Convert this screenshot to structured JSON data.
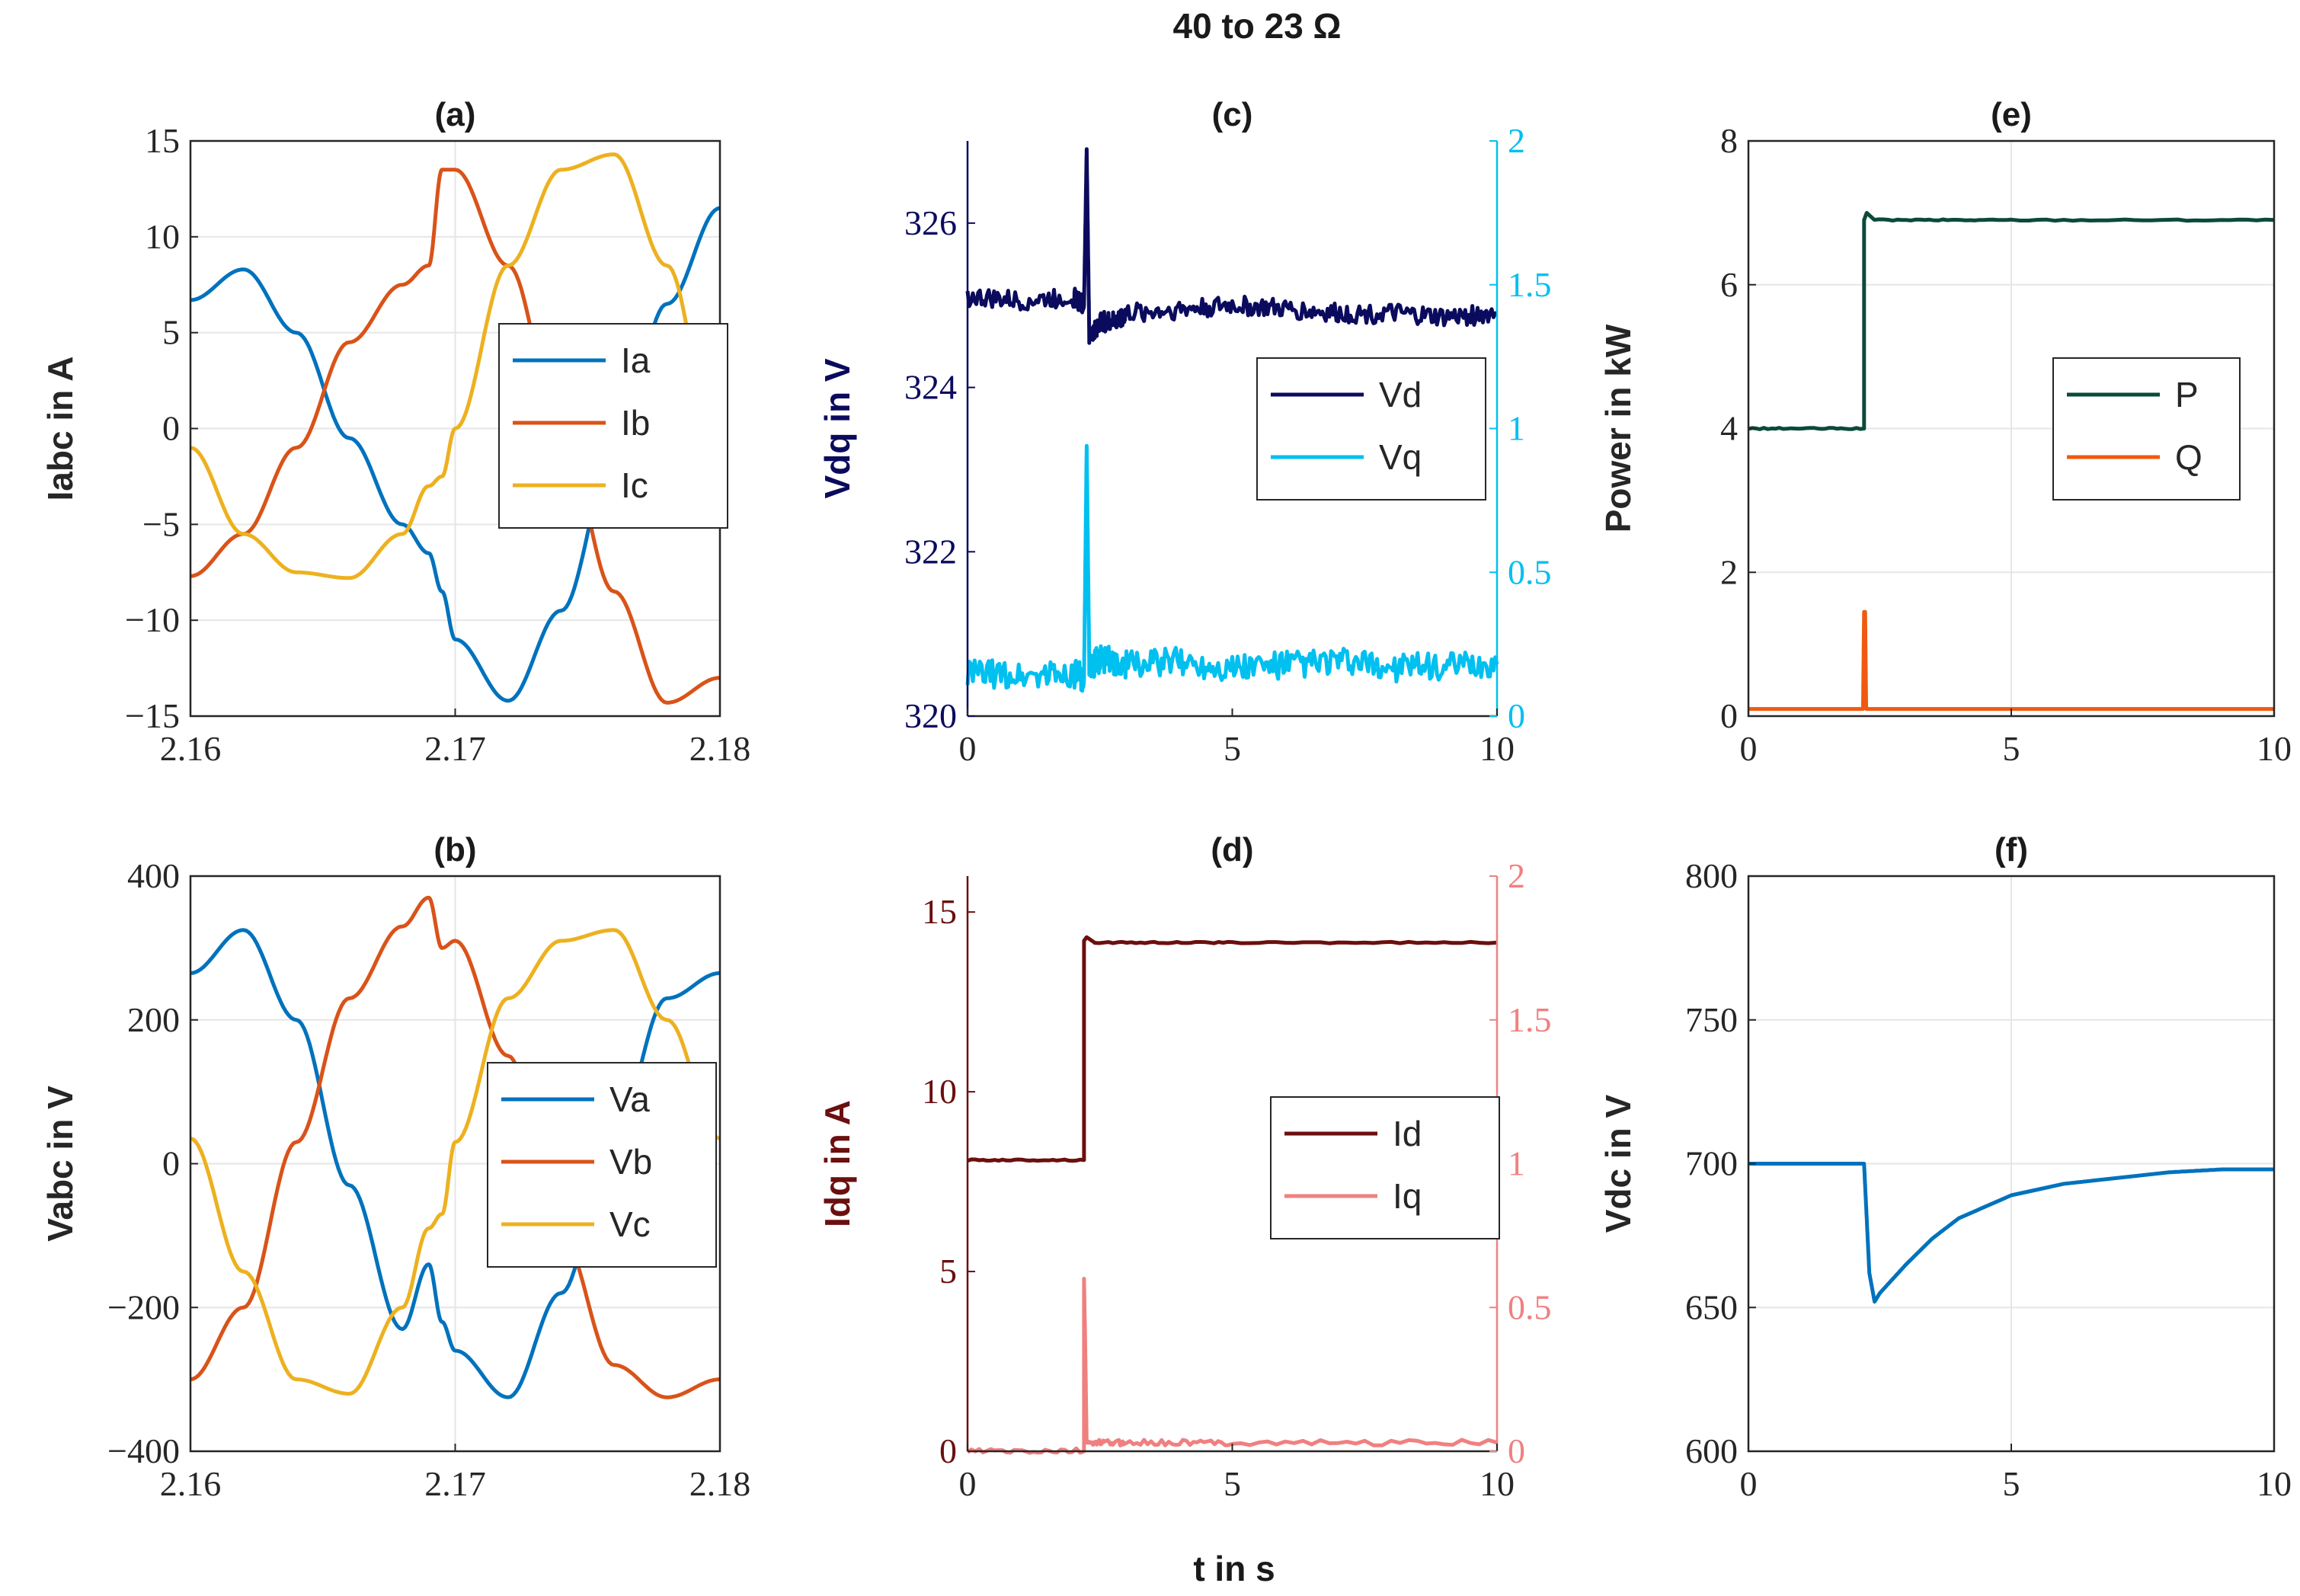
{
  "figure": {
    "suptitle": "40 to 23 Ω",
    "xlabel": "t in s"
  },
  "colors": {
    "ia": "#0072BD",
    "ib": "#D95319",
    "ic": "#EDB120",
    "vd": "#0B0B5E",
    "vq": "#00C0F0",
    "id": "#6B0F0F",
    "iq": "#F08080",
    "p": "#0B4A3A",
    "q": "#F05A10",
    "vdc": "#0072BD",
    "grid": "#e6e6e6",
    "axis": "#262626"
  },
  "chart_data": [
    {
      "id": "a",
      "type": "line",
      "title": "(a)",
      "ylabel": "Iabc in A",
      "xlabel": "",
      "xlim": [
        2.16,
        2.18
      ],
      "ylim": [
        -15,
        15
      ],
      "xticks": [
        2.16,
        2.17,
        2.18
      ],
      "xtick_labels": [
        "2.16",
        "2.17",
        "2.18"
      ],
      "yticks": [
        -15,
        -10,
        -5,
        0,
        5,
        10,
        15
      ],
      "ytick_labels": [
        "−15",
        "−10",
        "−5",
        "0",
        "5",
        "10",
        "15"
      ],
      "grid": true,
      "legend_position": "center-right",
      "series": [
        {
          "name": "Ia",
          "x": [
            2.16,
            2.162,
            2.164,
            2.166,
            2.168,
            2.169,
            2.1695,
            2.17,
            2.172,
            2.174,
            2.176,
            2.178,
            2.18
          ],
          "y": [
            6.7,
            8.3,
            5.0,
            -0.5,
            -5.0,
            -6.5,
            -8.5,
            -11.0,
            -14.2,
            -9.5,
            -1.5,
            6.5,
            11.5
          ]
        },
        {
          "name": "Ib",
          "x": [
            2.16,
            2.162,
            2.164,
            2.166,
            2.168,
            2.169,
            2.1695,
            2.17,
            2.172,
            2.174,
            2.176,
            2.178,
            2.18
          ],
          "y": [
            -7.7,
            -5.5,
            -1.0,
            4.5,
            7.5,
            8.5,
            13.5,
            13.5,
            8.5,
            0.0,
            -8.5,
            -14.3,
            -13.0
          ]
        },
        {
          "name": "Ic",
          "x": [
            2.16,
            2.162,
            2.164,
            2.166,
            2.168,
            2.169,
            2.1695,
            2.17,
            2.172,
            2.174,
            2.176,
            2.178,
            2.18
          ],
          "y": [
            -1.0,
            -5.5,
            -7.5,
            -7.8,
            -5.5,
            -3.0,
            -2.5,
            0.0,
            8.5,
            13.5,
            14.3,
            8.5,
            -2.0
          ]
        }
      ]
    },
    {
      "id": "b",
      "type": "line",
      "title": "(b)",
      "ylabel": "Vabc in V",
      "xlabel": "",
      "xlim": [
        2.16,
        2.18
      ],
      "ylim": [
        -400,
        400
      ],
      "xticks": [
        2.16,
        2.17,
        2.18
      ],
      "xtick_labels": [
        "2.16",
        "2.17",
        "2.18"
      ],
      "yticks": [
        -400,
        -200,
        0,
        200,
        400
      ],
      "ytick_labels": [
        "−400",
        "−200",
        "0",
        "200",
        "400"
      ],
      "grid": true,
      "legend_position": "center-right",
      "series": [
        {
          "name": "Va",
          "x": [
            2.16,
            2.162,
            2.164,
            2.166,
            2.168,
            2.169,
            2.1695,
            2.17,
            2.172,
            2.174,
            2.176,
            2.178,
            2.18
          ],
          "y": [
            265,
            325,
            200,
            -30,
            -230,
            -140,
            -220,
            -260,
            -325,
            -180,
            40,
            230,
            265
          ]
        },
        {
          "name": "Vb",
          "x": [
            2.16,
            2.162,
            2.164,
            2.166,
            2.168,
            2.169,
            2.1695,
            2.17,
            2.172,
            2.174,
            2.176,
            2.178,
            2.18
          ],
          "y": [
            -300,
            -200,
            30,
            230,
            330,
            370,
            300,
            310,
            150,
            -100,
            -280,
            -325,
            -300
          ]
        },
        {
          "name": "Vc",
          "x": [
            2.16,
            2.162,
            2.164,
            2.166,
            2.168,
            2.169,
            2.1695,
            2.17,
            2.172,
            2.174,
            2.176,
            2.178,
            2.18
          ],
          "y": [
            35,
            -150,
            -300,
            -320,
            -200,
            -90,
            -70,
            30,
            230,
            310,
            325,
            200,
            35
          ]
        }
      ]
    },
    {
      "id": "c",
      "type": "line",
      "title": "(c)",
      "ylabel": "Vdq in V",
      "xlabel": "",
      "xlim": [
        0,
        10
      ],
      "ylim": [
        320,
        327
      ],
      "y2lim": [
        0,
        2
      ],
      "xticks": [
        0,
        5,
        10
      ],
      "xtick_labels": [
        "0",
        "5",
        "10"
      ],
      "yticks": [
        320,
        322,
        324,
        326
      ],
      "ytick_labels": [
        "320",
        "322",
        "324",
        "326"
      ],
      "y2ticks": [
        0,
        0.5,
        1,
        1.5,
        2
      ],
      "y2tick_labels": [
        "0",
        "0.5",
        "1",
        "1.5",
        "2"
      ],
      "grid": false,
      "legend_position": "center-right",
      "series": [
        {
          "name": "Vd",
          "axis": "left",
          "x": [
            0,
            1,
            2,
            2.2,
            2.25,
            2.3,
            2.5,
            2.8,
            3,
            4,
            5,
            6,
            7,
            8,
            9,
            10
          ],
          "y": [
            325.1,
            325.05,
            325.1,
            325.0,
            326.9,
            324.6,
            324.8,
            324.8,
            324.9,
            324.95,
            325.0,
            324.95,
            324.9,
            324.9,
            324.85,
            324.9
          ]
        },
        {
          "name": "Vq",
          "axis": "right",
          "x": [
            0,
            1,
            2,
            2.2,
            2.25,
            2.3,
            2.5,
            3,
            4,
            5,
            6,
            7,
            8,
            9,
            10
          ],
          "y": [
            0.15,
            0.14,
            0.15,
            0.13,
            0.94,
            0.17,
            0.2,
            0.18,
            0.19,
            0.17,
            0.18,
            0.19,
            0.17,
            0.17,
            0.18
          ]
        }
      ]
    },
    {
      "id": "d",
      "type": "line",
      "title": "(d)",
      "ylabel": "Idq in A",
      "xlabel": "",
      "xlim": [
        0,
        10
      ],
      "ylim": [
        0,
        16
      ],
      "y2lim": [
        0,
        2
      ],
      "xticks": [
        0,
        5,
        10
      ],
      "xtick_labels": [
        "0",
        "5",
        "10"
      ],
      "yticks": [
        0,
        5,
        10,
        15
      ],
      "ytick_labels": [
        "0",
        "5",
        "10",
        "15"
      ],
      "y2ticks": [
        0,
        0.5,
        1,
        1.5,
        2
      ],
      "y2tick_labels": [
        "0",
        "0.5",
        "1",
        "1.5",
        "2"
      ],
      "grid": false,
      "legend_position": "center-right",
      "series": [
        {
          "name": "Id",
          "axis": "left",
          "x": [
            0,
            2.2,
            2.2,
            2.25,
            2.4,
            5,
            10
          ],
          "y": [
            8.1,
            8.1,
            14.2,
            14.3,
            14.15,
            14.15,
            14.15
          ]
        },
        {
          "name": "Iq",
          "axis": "right",
          "x": [
            0,
            2.2,
            2.2,
            2.22,
            2.25,
            2.3,
            3,
            5,
            10
          ],
          "y": [
            0.0,
            0.0,
            0.6,
            0.4,
            0.03,
            0.03,
            0.03,
            0.03,
            0.03
          ]
        }
      ]
    },
    {
      "id": "e",
      "type": "line",
      "title": "(e)",
      "ylabel": "Power in kW",
      "xlabel": "",
      "xlim": [
        0,
        10
      ],
      "ylim": [
        0,
        8
      ],
      "xticks": [
        0,
        5,
        10
      ],
      "xtick_labels": [
        "0",
        "5",
        "10"
      ],
      "yticks": [
        0,
        2,
        4,
        6,
        8
      ],
      "ytick_labels": [
        "0",
        "2",
        "4",
        "6",
        "8"
      ],
      "grid": true,
      "legend_position": "center-right",
      "series": [
        {
          "name": "P",
          "x": [
            0,
            2.2,
            2.2,
            2.25,
            2.4,
            5,
            10
          ],
          "y": [
            4.0,
            4.0,
            6.9,
            7.0,
            6.9,
            6.9,
            6.9
          ]
        },
        {
          "name": "Q",
          "x": [
            0,
            2.18,
            2.2,
            2.22,
            2.24,
            10
          ],
          "y": [
            0.1,
            0.1,
            1.45,
            1.45,
            0.1,
            0.1
          ]
        }
      ]
    },
    {
      "id": "f",
      "type": "line",
      "title": "(f)",
      "ylabel": "Vdc in V",
      "xlabel": "",
      "xlim": [
        0,
        10
      ],
      "ylim": [
        600,
        800
      ],
      "xticks": [
        0,
        5,
        10
      ],
      "xtick_labels": [
        "0",
        "5",
        "10"
      ],
      "yticks": [
        600,
        650,
        700,
        750,
        800
      ],
      "ytick_labels": [
        "600",
        "650",
        "700",
        "750",
        "800"
      ],
      "grid": true,
      "legend_position": "none",
      "series": [
        {
          "name": "Vdc",
          "x": [
            0,
            2.2,
            2.3,
            2.4,
            2.5,
            3,
            3.5,
            4,
            5,
            6,
            7,
            8,
            9,
            10
          ],
          "y": [
            700,
            700,
            662,
            652,
            655,
            665,
            674,
            681,
            689,
            693,
            695,
            697,
            698,
            698
          ]
        }
      ]
    }
  ]
}
